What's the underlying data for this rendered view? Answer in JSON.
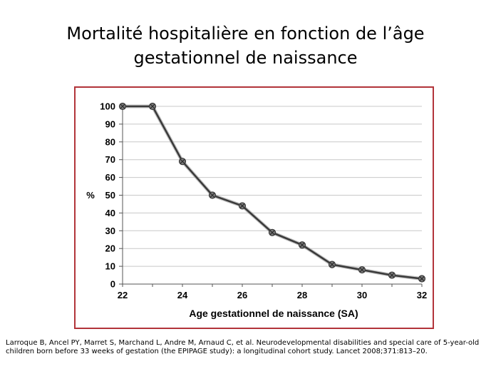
{
  "title_line1": "Mortalité hospitalière en fonction de l’âge",
  "title_line2": "gestationnel de naissance",
  "citation": "Larroque B, Ancel PY, Marret S, Marchand L, Andre M, Arnaud C, et al. Neurodevelopmental disabilities and special care of 5-year-old children born before 33 weeks of gestation (the EPIPAGE study): a longitudinal cohort study. Lancet 2008;371:813–20.",
  "colors": {
    "frame": "#b2343a",
    "line": "#3a3a3a",
    "grid": "#c8c8c8"
  },
  "chart_data": {
    "type": "line",
    "title": "",
    "xlabel": "Age gestationnel de naissance (SA)",
    "ylabel": "%",
    "xlim": [
      22,
      32
    ],
    "ylim": [
      0,
      100
    ],
    "xticks": [
      22,
      24,
      26,
      28,
      30,
      32
    ],
    "yticks": [
      0,
      10,
      20,
      30,
      40,
      50,
      60,
      70,
      80,
      90,
      100
    ],
    "grid": "horizontal",
    "legend": "none",
    "series": [
      {
        "x": [
          22,
          23,
          24,
          25,
          26,
          27,
          28,
          29,
          30,
          31,
          32
        ],
        "y": [
          100,
          100,
          69,
          50,
          44,
          29,
          22,
          11,
          8,
          5,
          3
        ]
      }
    ]
  }
}
